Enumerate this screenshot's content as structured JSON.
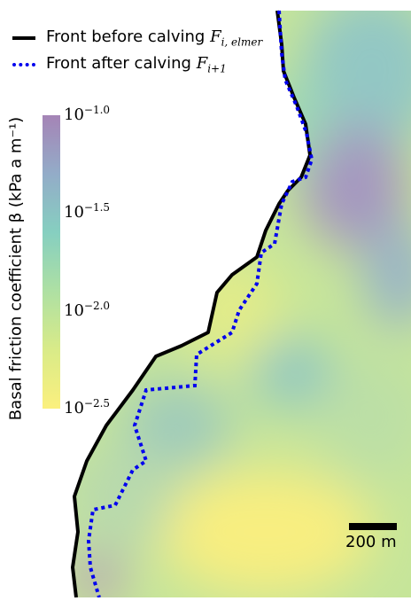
{
  "legend": {
    "before_label": "Front before calving",
    "before_symbol": "F",
    "before_subscript": "i, elmer",
    "after_label": "Front after calving",
    "after_symbol": "F",
    "after_subscript": "i+1"
  },
  "colorbar": {
    "title": "Basal friction coefficient β (kPa a m⁻¹)",
    "ticks": [
      {
        "base": "10",
        "exponent": "−1.0"
      },
      {
        "base": "10",
        "exponent": "−1.5"
      },
      {
        "base": "10",
        "exponent": "−2.0"
      },
      {
        "base": "10",
        "exponent": "−2.5"
      }
    ],
    "colormap": [
      "#fbf07e",
      "#d9eb88",
      "#aee0a3",
      "#86cfc0",
      "#93acc8",
      "#a584b6"
    ]
  },
  "scale_bar": {
    "label": "200 m"
  },
  "colors": {
    "front_before": "#000000",
    "front_after": "#0000ee"
  }
}
